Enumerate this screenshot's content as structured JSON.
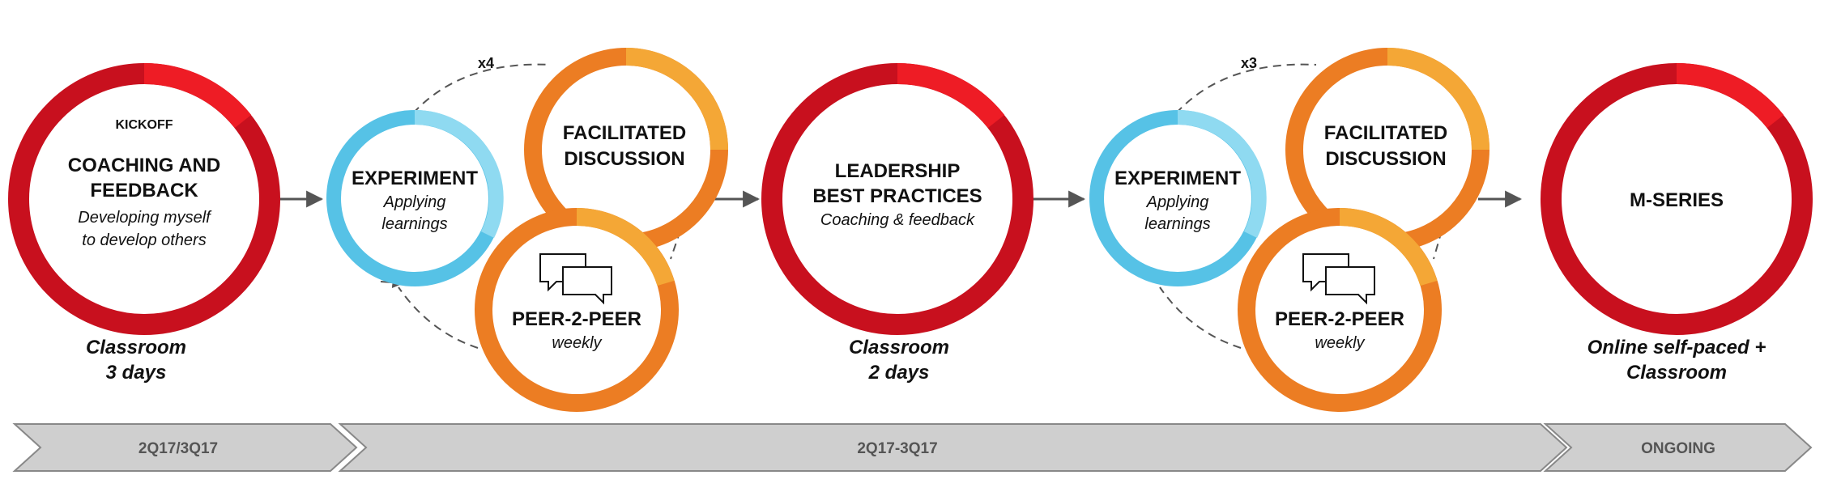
{
  "colors": {
    "red": "#c8101e",
    "red_accent": "#ee1c25",
    "blue": "#56c2e6",
    "blue_accent": "#8fdaf1",
    "orange": "#ec7d23",
    "orange_accent": "#f4a736",
    "chevron": "#cfcfcf",
    "chevron_text": "#555555",
    "arrow": "#555555"
  },
  "kickoff": {
    "tag": "KICKOFF",
    "title_line1": "COACHING AND",
    "title_line2": "FEEDBACK",
    "sub_line1": "Developing myself",
    "sub_line2": "to develop others",
    "caption_line1": "Classroom",
    "caption_line2": "3 days"
  },
  "cycle1": {
    "multiplier": "x4",
    "experiment": {
      "title": "EXPERIMENT",
      "sub_line1": "Applying",
      "sub_line2": "learnings"
    },
    "facilitated": {
      "title_line1": "FACILITATED",
      "title_line2": "DISCUSSION"
    },
    "peer": {
      "title": "PEER-2-PEER",
      "sub": "weekly"
    }
  },
  "leadership": {
    "title_line1": "LEADERSHIP",
    "title_line2": "BEST PRACTICES",
    "sub": "Coaching & feedback",
    "caption_line1": "Classroom",
    "caption_line2": "2 days"
  },
  "cycle2": {
    "multiplier": "x3",
    "experiment": {
      "title": "EXPERIMENT",
      "sub_line1": "Applying",
      "sub_line2": "learnings"
    },
    "facilitated": {
      "title_line1": "FACILITATED",
      "title_line2": "DISCUSSION"
    },
    "peer": {
      "title": "PEER-2-PEER",
      "sub": "weekly"
    }
  },
  "mseries": {
    "title": "M-SERIES",
    "caption_line1": "Online self-paced +",
    "caption_line2": "Classroom"
  },
  "timeline": [
    {
      "label": "2Q17/3Q17"
    },
    {
      "label": "2Q17-3Q17"
    },
    {
      "label": "ONGOING"
    }
  ]
}
